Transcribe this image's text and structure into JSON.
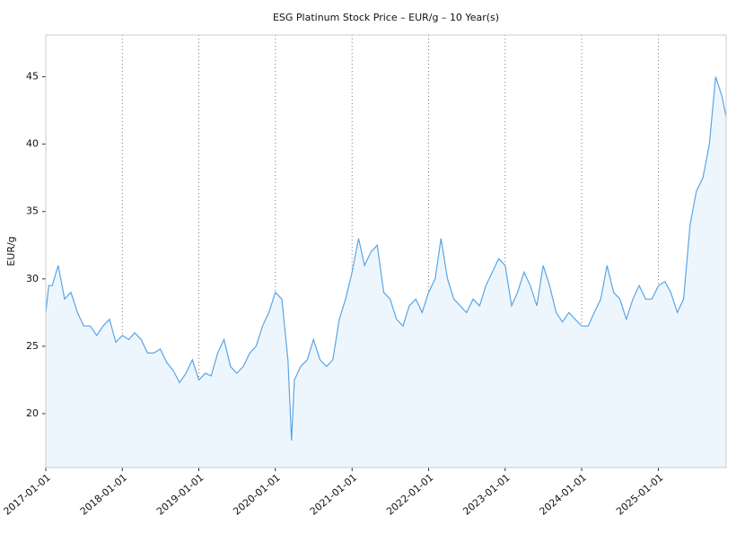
{
  "chart_data": {
    "type": "line",
    "title": "ESG Platinum Stock Price – EUR/g – 10 Year(s)",
    "y_label": "EUR/g",
    "x": [
      "2017-01-01",
      "2017-01-15",
      "2017-02-01",
      "2017-03-01",
      "2017-04-01",
      "2017-05-01",
      "2017-06-01",
      "2017-07-01",
      "2017-08-01",
      "2017-09-01",
      "2017-10-01",
      "2017-11-01",
      "2017-12-01",
      "2018-01-01",
      "2018-02-01",
      "2018-03-01",
      "2018-04-01",
      "2018-05-01",
      "2018-06-01",
      "2018-07-01",
      "2018-08-01",
      "2018-09-01",
      "2018-10-01",
      "2018-11-01",
      "2018-12-01",
      "2019-01-01",
      "2019-02-01",
      "2019-03-01",
      "2019-04-01",
      "2019-05-01",
      "2019-06-01",
      "2019-07-01",
      "2019-08-01",
      "2019-09-01",
      "2019-10-01",
      "2019-11-01",
      "2019-12-01",
      "2020-01-01",
      "2020-02-01",
      "2020-03-01",
      "2020-03-18",
      "2020-04-01",
      "2020-05-01",
      "2020-06-01",
      "2020-07-01",
      "2020-08-01",
      "2020-09-01",
      "2020-10-01",
      "2020-11-01",
      "2020-12-01",
      "2021-01-01",
      "2021-02-01",
      "2021-03-01",
      "2021-04-01",
      "2021-05-01",
      "2021-06-01",
      "2021-07-01",
      "2021-08-01",
      "2021-09-01",
      "2021-10-01",
      "2021-11-01",
      "2021-12-01",
      "2022-01-01",
      "2022-02-01",
      "2022-03-01",
      "2022-04-01",
      "2022-05-01",
      "2022-06-01",
      "2022-07-01",
      "2022-08-01",
      "2022-09-01",
      "2022-10-01",
      "2022-11-01",
      "2022-12-01",
      "2023-01-01",
      "2023-02-01",
      "2023-03-01",
      "2023-04-01",
      "2023-05-01",
      "2023-06-01",
      "2023-07-01",
      "2023-08-01",
      "2023-09-01",
      "2023-10-01",
      "2023-11-01",
      "2023-12-01",
      "2024-01-01",
      "2024-02-01",
      "2024-03-01",
      "2024-04-01",
      "2024-05-01",
      "2024-06-01",
      "2024-07-01",
      "2024-08-01",
      "2024-09-01",
      "2024-10-01",
      "2024-11-01",
      "2024-12-01",
      "2025-01-01",
      "2025-02-01",
      "2025-03-01",
      "2025-04-01",
      "2025-05-01",
      "2025-06-01",
      "2025-07-01",
      "2025-08-01",
      "2025-09-01",
      "2025-10-01",
      "2025-11-01",
      "2025-11-20"
    ],
    "series": [
      {
        "name": "ESG Platinum",
        "color": "#5aa5e6",
        "values": [
          27.5,
          29.5,
          29.5,
          31,
          28.5,
          29,
          27.5,
          26.5,
          26.5,
          25.8,
          26.5,
          27,
          25.3,
          25.8,
          25.5,
          26,
          25.5,
          24.5,
          24.5,
          24.8,
          23.8,
          23.2,
          22.3,
          23,
          24,
          22.5,
          23,
          22.8,
          24.5,
          25.5,
          23.5,
          23,
          23.5,
          24.5,
          25,
          26.5,
          27.5,
          29,
          28.5,
          24,
          18,
          22.5,
          23.5,
          24,
          25.5,
          24,
          23.5,
          24,
          27,
          28.5,
          30.5,
          33,
          31,
          32,
          32.5,
          29,
          28.5,
          27,
          26.5,
          28,
          28.5,
          27.5,
          29,
          30,
          33,
          30,
          28.5,
          28,
          27.5,
          28.5,
          28,
          29.5,
          30.5,
          31.5,
          31,
          28,
          29,
          30.5,
          29.5,
          28,
          31,
          29.5,
          27.5,
          26.8,
          27.5,
          27,
          26.5,
          26.5,
          27.5,
          28.5,
          31,
          29,
          28.5,
          27,
          28.5,
          29.5,
          28.5,
          28.5,
          29.5,
          29.8,
          29,
          27.5,
          28.5,
          34,
          36.5,
          37.5,
          40,
          45,
          43.5,
          42
        ]
      }
    ],
    "xlim": [
      "2017-01-01",
      "2025-11-20"
    ],
    "xticks": [
      "2017-01-01",
      "2018-01-01",
      "2019-01-01",
      "2020-01-01",
      "2021-01-01",
      "2022-01-01",
      "2023-01-01",
      "2024-01-01",
      "2025-01-01"
    ],
    "ylim": [
      16,
      48.1
    ],
    "yticks": [
      20,
      25,
      30,
      35,
      40,
      45
    ],
    "grid": true
  }
}
